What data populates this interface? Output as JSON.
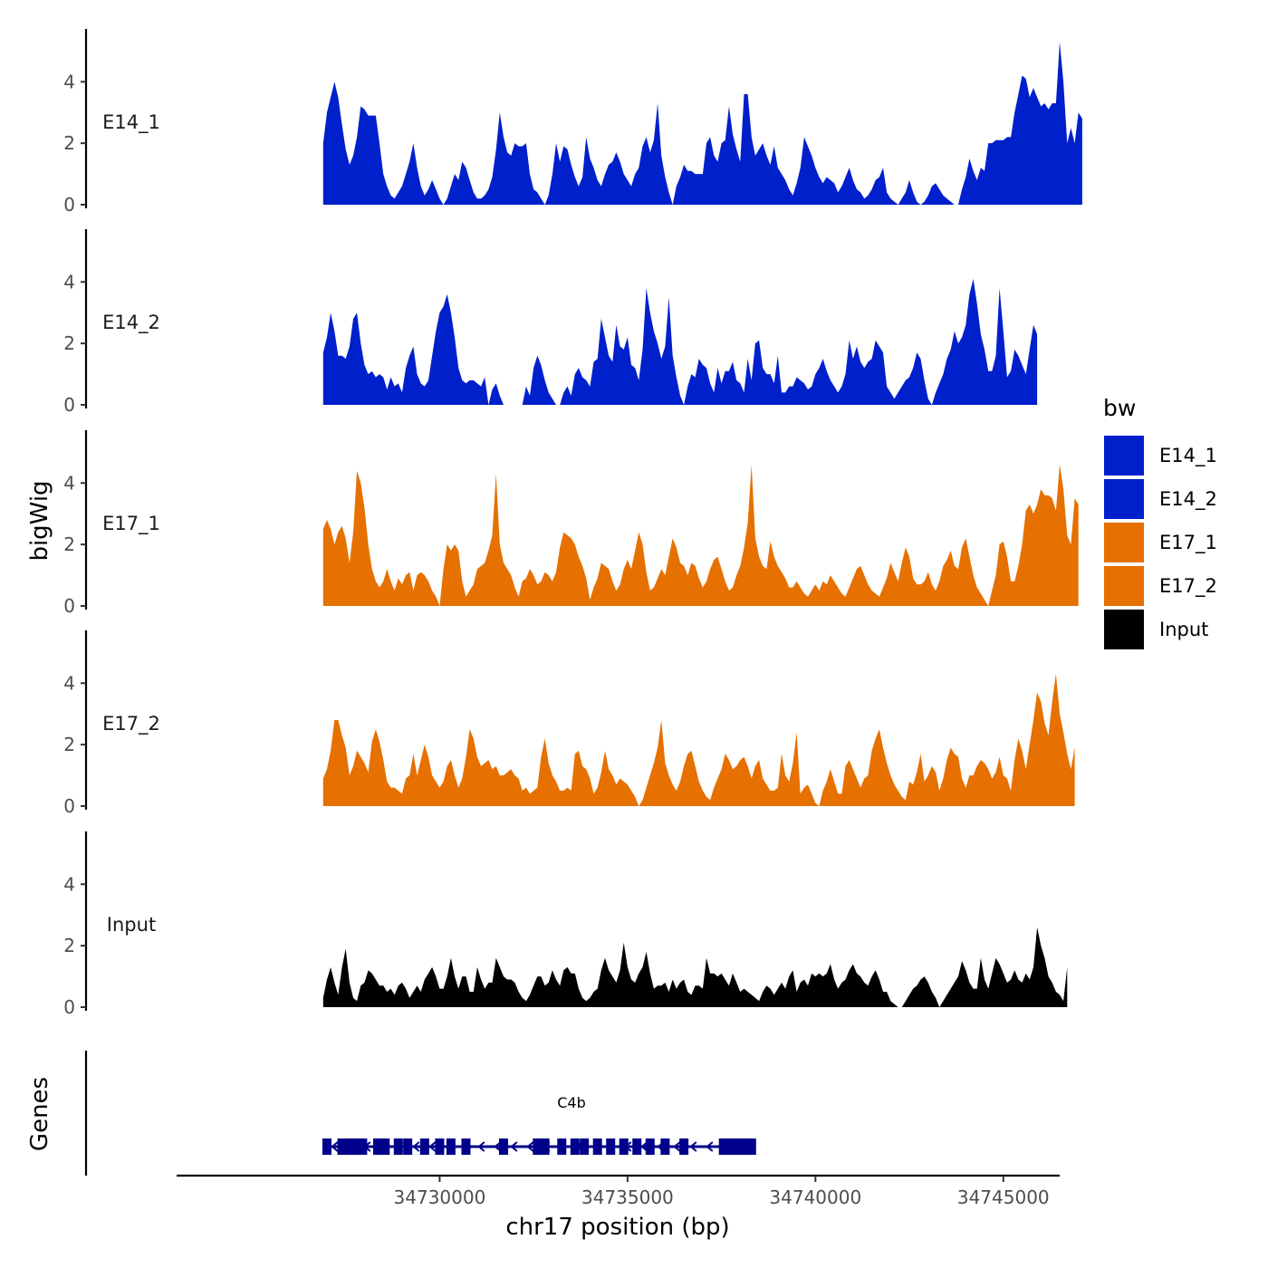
{
  "chart_data": {
    "type": "area",
    "xlabel": "chr17 position (bp)",
    "ylabel": "bigWig",
    "genes_label": "Genes",
    "xlim": [
      34723000,
      34746500
    ],
    "ylim": [
      0,
      5.6
    ],
    "x_ticks": [
      34730000,
      34735000,
      34740000,
      34745000
    ],
    "x_tick_labels": [
      "34730000",
      "34735000",
      "34740000",
      "34745000"
    ],
    "y_ticks": [
      0,
      2,
      4
    ],
    "y_tick_labels": [
      "0",
      "2",
      "4"
    ],
    "legend_title": "bw",
    "legend": [
      {
        "name": "E14_1",
        "color": "#0020CC"
      },
      {
        "name": "E14_2",
        "color": "#0020CC"
      },
      {
        "name": "E17_1",
        "color": "#E67000"
      },
      {
        "name": "E17_2",
        "color": "#E67000"
      },
      {
        "name": "Input",
        "color": "#000000"
      }
    ],
    "x_start": 34726900,
    "x_step": 100,
    "series": [
      {
        "name": "E14_1",
        "color": "#0020CC",
        "values": [
          2.0,
          3.0,
          3.5,
          4.0,
          3.5,
          2.6,
          1.8,
          1.3,
          1.6,
          2.2,
          3.2,
          3.1,
          2.9,
          2.9,
          2.9,
          2.0,
          1.0,
          0.6,
          0.3,
          0.2,
          0.4,
          0.6,
          1.0,
          1.4,
          2.0,
          1.2,
          0.6,
          0.3,
          0.5,
          0.8,
          0.5,
          0.2,
          0.0,
          0.2,
          0.6,
          1.0,
          0.8,
          1.4,
          1.2,
          0.8,
          0.4,
          0.2,
          0.2,
          0.3,
          0.5,
          0.9,
          1.8,
          3.0,
          2.2,
          1.7,
          1.6,
          2.0,
          1.9,
          1.9,
          2.0,
          1.0,
          0.5,
          0.4,
          0.2,
          0.0,
          0.3,
          1.0,
          2.0,
          1.4,
          1.9,
          1.8,
          1.3,
          0.9,
          0.6,
          0.9,
          2.2,
          1.5,
          1.2,
          0.8,
          0.6,
          1.0,
          1.3,
          1.4,
          1.7,
          1.4,
          1.0,
          0.8,
          0.6,
          1.0,
          1.2,
          1.9,
          2.2,
          1.7,
          2.1,
          3.3,
          1.6,
          0.9,
          0.4,
          0.0,
          0.6,
          0.9,
          1.3,
          1.1,
          1.1,
          1.0,
          1.0,
          1.0,
          2.0,
          2.2,
          1.6,
          1.4,
          2.0,
          2.1,
          3.2,
          2.3,
          1.8,
          1.4,
          3.6,
          3.6,
          2.2,
          1.6,
          1.8,
          2.0,
          1.6,
          1.3,
          1.9,
          1.2,
          1.0,
          0.8,
          0.5,
          0.3,
          0.7,
          1.2,
          2.2,
          1.9,
          1.6,
          1.2,
          0.9,
          0.7,
          0.9,
          0.8,
          0.7,
          0.4,
          0.6,
          0.9,
          1.2,
          0.8,
          0.5,
          0.4,
          0.2,
          0.3,
          0.5,
          0.8,
          0.9,
          1.2,
          0.4,
          0.2,
          0.1,
          0.0,
          0.2,
          0.4,
          0.8,
          0.4,
          0.1,
          0.0,
          0.1,
          0.3,
          0.6,
          0.7,
          0.5,
          0.3,
          0.2,
          0.1,
          0.0,
          0.0,
          0.5,
          0.9,
          1.5,
          1.1,
          0.8,
          1.2,
          1.1,
          2.0,
          2.0,
          2.1,
          2.1,
          2.1,
          2.2,
          2.2,
          3.0,
          3.6,
          4.2,
          4.1,
          3.5,
          3.8,
          3.5,
          3.2,
          3.3,
          3.1,
          3.3,
          3.3,
          5.3,
          4.0,
          2.0,
          2.5,
          2.0,
          3.0,
          2.8
        ]
      },
      {
        "name": "E14_2",
        "color": "#0020CC",
        "values": [
          1.7,
          2.2,
          3.0,
          2.4,
          1.6,
          1.6,
          1.5,
          1.9,
          2.8,
          3.0,
          2.0,
          1.3,
          1.0,
          1.1,
          0.9,
          1.0,
          0.9,
          0.5,
          0.9,
          0.6,
          0.7,
          0.4,
          1.2,
          1.6,
          1.9,
          1.0,
          0.7,
          0.6,
          0.8,
          1.6,
          2.4,
          3.0,
          3.2,
          3.6,
          3.0,
          2.2,
          1.2,
          0.8,
          0.7,
          0.8,
          0.8,
          0.7,
          0.6,
          0.9,
          0.0,
          0.5,
          0.7,
          0.3,
          0.0,
          0.0,
          0.0,
          0.0,
          0.0,
          0.0,
          0.6,
          0.3,
          1.2,
          1.6,
          1.3,
          0.8,
          0.4,
          0.2,
          0.0,
          0.0,
          0.4,
          0.6,
          0.3,
          1.0,
          1.2,
          0.9,
          0.8,
          0.6,
          1.4,
          1.5,
          2.8,
          2.2,
          1.6,
          1.4,
          2.6,
          1.9,
          1.8,
          2.2,
          1.3,
          1.2,
          0.8,
          1.8,
          3.8,
          3.0,
          2.4,
          2.0,
          1.5,
          1.9,
          3.5,
          1.6,
          0.9,
          0.3,
          0.0,
          0.6,
          1.0,
          0.9,
          1.5,
          1.3,
          1.2,
          0.7,
          0.4,
          1.2,
          0.7,
          1.1,
          1.1,
          1.4,
          0.8,
          0.7,
          0.4,
          1.5,
          0.8,
          2.0,
          2.1,
          1.2,
          1.0,
          1.0,
          0.7,
          1.6,
          0.4,
          0.4,
          0.6,
          0.6,
          0.9,
          0.8,
          0.7,
          0.5,
          0.6,
          1.0,
          1.2,
          1.5,
          1.1,
          0.8,
          0.6,
          0.4,
          0.6,
          1.0,
          2.1,
          1.5,
          1.9,
          1.4,
          1.2,
          1.4,
          1.5,
          2.1,
          1.9,
          1.7,
          0.6,
          0.4,
          0.2,
          0.4,
          0.6,
          0.8,
          0.9,
          1.2,
          1.7,
          1.5,
          0.8,
          0.2,
          0.0,
          0.4,
          0.7,
          1.0,
          1.5,
          1.8,
          2.4,
          2.0,
          2.2,
          2.6,
          3.6,
          4.1,
          3.3,
          2.3,
          1.8,
          1.1,
          1.1,
          1.6,
          3.8,
          2.4,
          0.9,
          1.1,
          1.8,
          1.6,
          1.3,
          1.0,
          1.8,
          2.6,
          2.3
        ]
      },
      {
        "name": "E17_1",
        "color": "#E67000",
        "values": [
          2.5,
          2.8,
          2.5,
          2.0,
          2.4,
          2.6,
          2.2,
          1.4,
          2.4,
          4.4,
          4.0,
          3.2,
          2.0,
          1.2,
          0.8,
          0.6,
          0.8,
          1.2,
          0.8,
          0.5,
          0.9,
          0.7,
          1.0,
          1.1,
          0.5,
          1.0,
          1.1,
          1.0,
          0.8,
          0.5,
          0.3,
          0.0,
          1.2,
          2.0,
          1.8,
          2.0,
          1.8,
          0.8,
          0.3,
          0.5,
          0.7,
          1.2,
          1.3,
          1.4,
          1.8,
          2.3,
          4.3,
          2.0,
          1.4,
          1.2,
          1.0,
          0.6,
          0.3,
          0.8,
          0.9,
          1.2,
          1.0,
          0.7,
          0.8,
          1.1,
          1.0,
          0.8,
          1.1,
          1.9,
          2.4,
          2.3,
          2.2,
          2.0,
          1.6,
          1.3,
          0.9,
          0.2,
          0.6,
          0.9,
          1.4,
          1.3,
          1.2,
          0.8,
          0.5,
          0.7,
          1.2,
          1.5,
          1.2,
          1.8,
          2.4,
          2.0,
          1.1,
          0.5,
          0.6,
          0.9,
          1.2,
          1.0,
          1.6,
          2.2,
          1.9,
          1.4,
          1.3,
          1.0,
          1.4,
          1.3,
          0.9,
          0.6,
          0.8,
          1.2,
          1.5,
          1.6,
          1.2,
          0.8,
          0.5,
          0.6,
          1.0,
          1.3,
          1.9,
          2.7,
          4.6,
          2.2,
          1.6,
          1.3,
          1.2,
          2.1,
          1.6,
          1.3,
          1.1,
          0.9,
          0.6,
          0.6,
          0.8,
          0.6,
          0.4,
          0.3,
          0.5,
          0.7,
          0.5,
          0.8,
          0.7,
          1.0,
          0.8,
          0.6,
          0.4,
          0.3,
          0.6,
          0.9,
          1.2,
          1.3,
          1.0,
          0.7,
          0.5,
          0.4,
          0.3,
          0.6,
          0.9,
          1.4,
          1.1,
          0.8,
          1.4,
          1.9,
          1.6,
          0.9,
          0.7,
          0.7,
          0.8,
          1.1,
          0.7,
          0.5,
          0.8,
          1.3,
          1.5,
          1.8,
          1.3,
          1.2,
          1.9,
          2.2,
          1.6,
          1.0,
          0.6,
          0.4,
          0.2,
          0.0,
          0.5,
          1.0,
          2.0,
          2.1,
          1.6,
          0.8,
          0.8,
          1.3,
          2.0,
          3.1,
          3.3,
          3.0,
          3.3,
          3.8,
          3.6,
          3.6,
          3.5,
          3.1,
          4.6,
          3.8,
          2.3,
          2.0,
          3.5,
          3.3
        ]
      },
      {
        "name": "E17_2",
        "color": "#E67000",
        "values": [
          0.9,
          1.2,
          1.8,
          2.8,
          2.8,
          2.3,
          1.9,
          1.0,
          1.3,
          1.8,
          1.6,
          1.4,
          1.1,
          2.1,
          2.5,
          2.1,
          1.5,
          0.8,
          0.6,
          0.6,
          0.5,
          0.4,
          0.9,
          1.0,
          1.7,
          1.0,
          1.5,
          2.0,
          1.6,
          1.0,
          0.8,
          0.6,
          0.8,
          1.3,
          1.5,
          1.0,
          0.6,
          0.9,
          1.6,
          2.5,
          2.2,
          1.6,
          1.3,
          1.4,
          1.5,
          1.2,
          1.3,
          1.0,
          1.0,
          1.1,
          1.2,
          1.0,
          0.9,
          0.5,
          0.6,
          0.4,
          0.5,
          0.6,
          1.6,
          2.2,
          1.4,
          1.0,
          0.8,
          0.5,
          0.5,
          0.6,
          0.5,
          1.7,
          1.8,
          1.3,
          1.2,
          0.9,
          0.4,
          0.6,
          1.1,
          1.8,
          1.2,
          1.0,
          0.7,
          0.9,
          0.8,
          0.7,
          0.5,
          0.3,
          0.0,
          0.2,
          0.6,
          1.0,
          1.4,
          1.9,
          2.8,
          1.4,
          1.0,
          0.7,
          0.5,
          0.8,
          1.3,
          1.7,
          1.8,
          1.3,
          0.8,
          0.5,
          0.3,
          0.2,
          0.6,
          0.9,
          1.2,
          1.7,
          1.5,
          1.2,
          1.3,
          1.5,
          1.6,
          1.3,
          0.9,
          1.3,
          1.5,
          0.9,
          0.7,
          0.5,
          0.5,
          0.6,
          1.7,
          1.0,
          0.8,
          1.4,
          2.4,
          0.4,
          0.6,
          0.7,
          0.4,
          0.1,
          0.0,
          0.5,
          0.8,
          1.2,
          0.8,
          0.4,
          0.4,
          1.3,
          1.5,
          1.2,
          0.9,
          0.6,
          0.9,
          1.0,
          1.8,
          2.2,
          2.5,
          1.9,
          1.4,
          1.0,
          0.7,
          0.5,
          0.3,
          0.2,
          0.8,
          0.7,
          1.1,
          1.7,
          0.8,
          1.0,
          1.3,
          1.1,
          0.5,
          0.9,
          1.5,
          1.9,
          1.7,
          1.6,
          0.9,
          0.6,
          1.0,
          1.0,
          1.3,
          1.5,
          1.4,
          1.2,
          0.9,
          1.1,
          1.6,
          1.0,
          0.9,
          0.5,
          1.5,
          2.2,
          1.8,
          1.2,
          2.0,
          2.8,
          3.7,
          3.4,
          2.7,
          2.3,
          3.4,
          4.3,
          3.0,
          2.4,
          1.7,
          1.2,
          1.9
        ]
      },
      {
        "name": "Input",
        "color": "#000000",
        "values": [
          0.3,
          0.9,
          1.3,
          0.8,
          0.4,
          1.3,
          1.9,
          0.8,
          0.3,
          0.2,
          0.7,
          0.8,
          1.2,
          1.1,
          0.9,
          0.7,
          0.7,
          0.5,
          0.6,
          0.4,
          0.7,
          0.8,
          0.6,
          0.3,
          0.5,
          0.7,
          0.5,
          0.9,
          1.1,
          1.3,
          1.0,
          0.6,
          0.6,
          1.0,
          1.6,
          1.0,
          0.6,
          1.0,
          1.0,
          0.5,
          0.5,
          1.3,
          0.9,
          0.6,
          0.8,
          0.8,
          1.6,
          1.3,
          1.0,
          0.9,
          0.9,
          0.8,
          0.5,
          0.3,
          0.2,
          0.4,
          0.7,
          1.0,
          1.0,
          0.7,
          0.8,
          1.2,
          0.9,
          0.7,
          1.2,
          1.3,
          1.1,
          1.1,
          0.6,
          0.3,
          0.2,
          0.3,
          0.5,
          0.6,
          1.2,
          1.6,
          1.2,
          1.0,
          0.8,
          1.2,
          2.1,
          1.3,
          0.9,
          0.8,
          1.1,
          1.3,
          1.8,
          1.1,
          0.6,
          0.7,
          0.7,
          0.8,
          0.5,
          0.9,
          0.6,
          0.8,
          0.9,
          0.5,
          0.4,
          0.7,
          0.7,
          0.6,
          1.6,
          1.1,
          1.1,
          1.0,
          1.1,
          0.9,
          0.7,
          1.1,
          0.8,
          0.5,
          0.6,
          0.5,
          0.4,
          0.3,
          0.2,
          0.5,
          0.7,
          0.6,
          0.4,
          0.6,
          0.8,
          0.6,
          1.0,
          1.2,
          0.5,
          0.8,
          0.9,
          0.7,
          1.1,
          1.0,
          1.1,
          1.0,
          1.1,
          1.4,
          0.9,
          0.6,
          0.8,
          0.9,
          1.2,
          1.4,
          1.1,
          1.0,
          0.8,
          0.7,
          1.0,
          1.2,
          0.9,
          0.5,
          0.5,
          0.2,
          0.1,
          0.0,
          0.0,
          0.2,
          0.4,
          0.6,
          0.7,
          0.9,
          1.0,
          0.8,
          0.5,
          0.3,
          0.0,
          0.2,
          0.4,
          0.6,
          0.8,
          1.0,
          1.5,
          1.2,
          0.8,
          0.6,
          0.6,
          1.6,
          0.9,
          0.6,
          1.1,
          1.6,
          1.4,
          1.1,
          0.8,
          0.9,
          1.2,
          0.9,
          0.8,
          1.1,
          0.9,
          1.3,
          2.6,
          2.0,
          1.6,
          1.0,
          0.8,
          0.5,
          0.4,
          0.2,
          1.3
        ]
      }
    ],
    "genes": [
      {
        "name": "C4b",
        "start": 34726900,
        "end": 34738300,
        "strand": "-",
        "exons": [
          34727000,
          34727400,
          34727600,
          34727750,
          34727950,
          34728350,
          34728550,
          34728900,
          34729150,
          34729600,
          34730000,
          34730300,
          34730700,
          34731700,
          34732600,
          34732800,
          34733250,
          34733600,
          34733850,
          34734200,
          34734550,
          34734900,
          34735250,
          34735600,
          34736000,
          34736500,
          34737550,
          34737700,
          34737900,
          34738100,
          34738300
        ]
      }
    ]
  }
}
